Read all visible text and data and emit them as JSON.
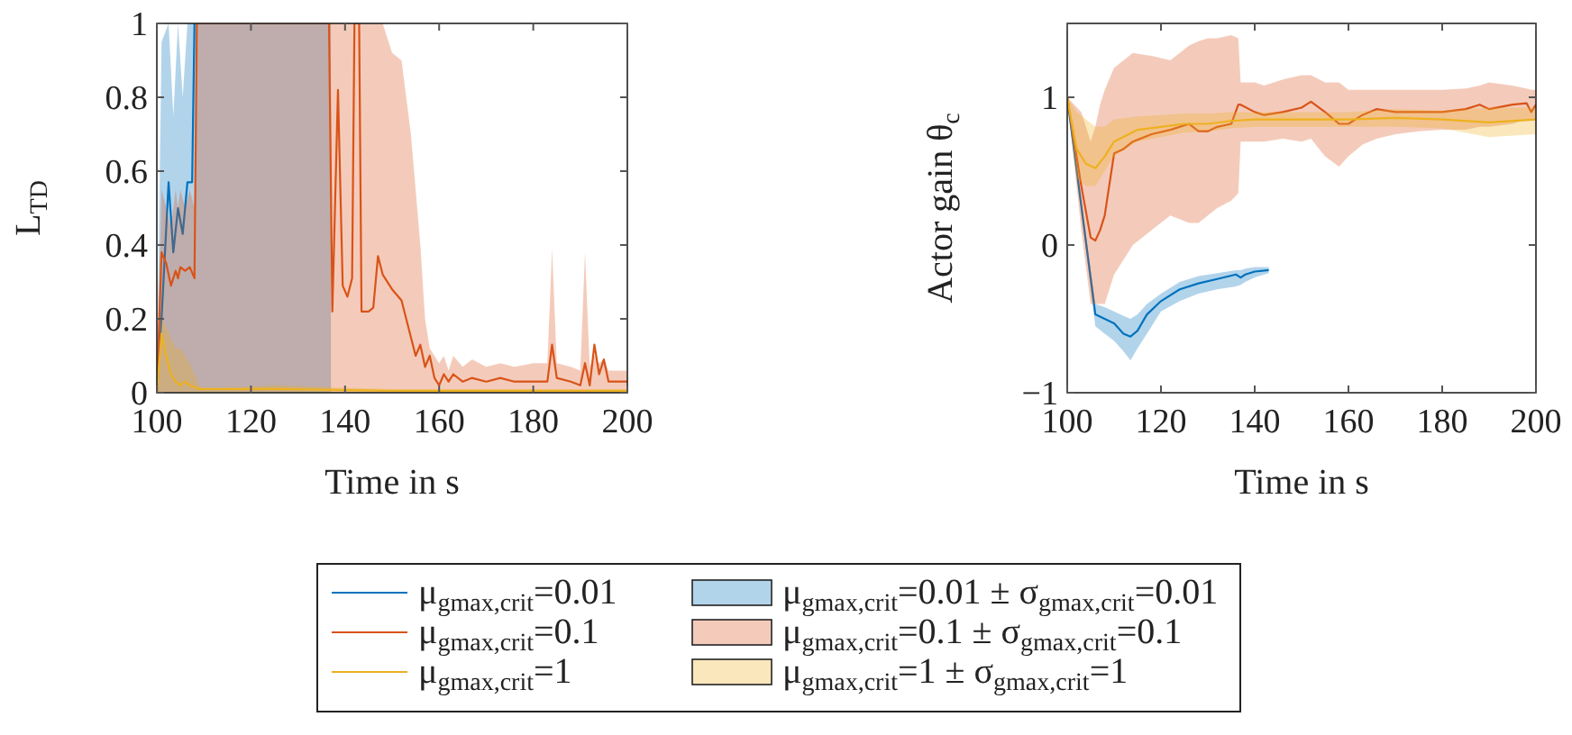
{
  "chart_data": [
    {
      "type": "line",
      "ylabel": "L$_{TD}$",
      "xlabel": "Time in s",
      "xlim": [
        100,
        200
      ],
      "ylim": [
        0,
        1
      ],
      "xticks": [
        100,
        120,
        140,
        160,
        180,
        200
      ],
      "yticks": [
        0,
        0.2,
        0.4,
        0.6,
        0.8,
        1
      ],
      "grid": false,
      "legend": "bottom",
      "annotations": [
        "μ$_{g}$$_{max,crit}$=0.01 ± σ$_{g}$$_{max,crit}$=0.01",
        "μ$_{g}$$_{max,crit}$=0.1 ± σ$_{g}$$_{max,crit}$=0.1",
        "μ$_{g}$$_{max,crit}$=1 ± σ$_{g}$$_{max,crit}$=1"
      ],
      "series": [
        {
          "name": "μ$_{g}$$_{max,crit}$=0.01",
          "color": "#0072bd",
          "x": [
            100,
            101,
            102.5,
            103.5,
            104.5,
            105.5,
            106.5,
            107.5,
            108,
            109,
            110,
            120,
            130,
            137
          ],
          "values": [
            0,
            0.2,
            0.57,
            0.38,
            0.5,
            0.43,
            0.57,
            0.57,
            1,
            null,
            null,
            null,
            null,
            null
          ],
          "lower": [
            0,
            0,
            0,
            0,
            0,
            0,
            0,
            0,
            0,
            0,
            0,
            0,
            0,
            0
          ],
          "upper": [
            0,
            0.95,
            1,
            0.75,
            1,
            0.8,
            1,
            1,
            1,
            1,
            1,
            1,
            1,
            1
          ]
        },
        {
          "name": "μ$_{g}$$_{max,crit}$=0.1",
          "color": "#d95319",
          "x": [
            100,
            101,
            102,
            103,
            104,
            104.5,
            105,
            106,
            107,
            108,
            108.5,
            136.6,
            137.3,
            138.5,
            139.5,
            140.5,
            141.5,
            142,
            143,
            143.5,
            145,
            146,
            147,
            148,
            150,
            152,
            153,
            154,
            155,
            156,
            157,
            158,
            159,
            160,
            161,
            162,
            163,
            165,
            167,
            170,
            173,
            176,
            180,
            183,
            184,
            185,
            188,
            190,
            191,
            192,
            193,
            194,
            195,
            196,
            198,
            200
          ],
          "values": [
            0,
            0.38,
            0.35,
            0.29,
            0.33,
            0.31,
            0.34,
            0.33,
            0.34,
            0.31,
            1,
            1,
            0.22,
            0.82,
            0.29,
            0.26,
            0.31,
            1,
            1,
            0.22,
            0.22,
            0.23,
            0.37,
            0.32,
            0.28,
            0.25,
            0.2,
            0.15,
            0.1,
            0.13,
            0.07,
            0.1,
            0.04,
            0.02,
            0.05,
            0.03,
            0.05,
            0.03,
            0.04,
            0.03,
            0.04,
            0.03,
            0.03,
            0.03,
            0.13,
            0.04,
            0.03,
            0.02,
            0.08,
            0.02,
            0.13,
            0.05,
            0.09,
            0.03,
            0.03,
            0.03
          ],
          "lower": [
            0,
            0,
            0,
            0,
            0,
            0,
            0,
            0,
            0,
            0,
            0,
            0,
            0,
            0,
            0,
            0,
            0,
            0,
            0,
            0,
            0,
            0,
            0,
            0,
            0,
            0,
            0,
            0,
            0,
            0,
            0,
            0,
            0,
            0,
            0,
            0,
            0,
            0,
            0,
            0,
            0,
            0,
            0,
            0,
            0,
            0,
            0,
            0,
            0,
            0,
            0,
            0,
            0,
            0,
            0,
            0
          ],
          "upper": [
            0,
            0.55,
            0.5,
            0.45,
            0.55,
            0.5,
            0.55,
            0.5,
            0.55,
            0.5,
            1,
            1,
            1,
            1,
            1,
            1,
            1,
            1,
            1,
            1,
            1,
            1,
            1,
            1,
            0.92,
            0.9,
            0.8,
            0.7,
            0.55,
            0.4,
            0.2,
            0.12,
            0.1,
            0.08,
            0.1,
            0.06,
            0.1,
            0.07,
            0.09,
            0.07,
            0.08,
            0.07,
            0.08,
            0.08,
            0.39,
            0.08,
            0.07,
            0.06,
            0.38,
            0.07,
            0.1,
            0.08,
            0.09,
            0.06,
            0.06,
            0.06
          ]
        },
        {
          "name": "μ$_{g}$$_{max,crit}$=1",
          "color": "#edb120",
          "x": [
            100,
            101,
            102,
            103,
            104,
            105,
            106,
            107,
            109,
            110,
            125,
            150,
            175,
            200
          ],
          "values": [
            0,
            0.16,
            0.1,
            0.05,
            0.03,
            0.02,
            0.03,
            0.02,
            0.01,
            0.01,
            0.01,
            0.005,
            0.005,
            0.005
          ],
          "lower": [
            0,
            0,
            0,
            0,
            0,
            0,
            0,
            0,
            0,
            0,
            0,
            0,
            0,
            0
          ],
          "upper": [
            0,
            0.2,
            0.18,
            0.15,
            0.12,
            0.12,
            0.1,
            0.08,
            0.02,
            0.01,
            0.02,
            0.01,
            0.01,
            0.01
          ]
        }
      ]
    },
    {
      "type": "line",
      "ylabel": "Actor gain θ$_{c}$",
      "xlabel": "Time in s",
      "xlim": [
        100,
        200
      ],
      "ylim": [
        -1,
        1.5
      ],
      "xticks": [
        100,
        120,
        140,
        160,
        180,
        200
      ],
      "yticks": [
        -1,
        0,
        1
      ],
      "grid": false,
      "series": [
        {
          "color": "#0072bd",
          "x": [
            100,
            106,
            108,
            110,
            112,
            113.5,
            115,
            117,
            120,
            124,
            128,
            132,
            136,
            137,
            138,
            140,
            143
          ],
          "values": [
            1,
            -0.47,
            -0.5,
            -0.53,
            -0.6,
            -0.62,
            -0.58,
            -0.47,
            -0.38,
            -0.3,
            -0.26,
            -0.23,
            -0.2,
            -0.22,
            -0.2,
            -0.18,
            -0.17
          ],
          "lower": [
            1,
            -0.55,
            -0.6,
            -0.65,
            -0.72,
            -0.78,
            -0.7,
            -0.6,
            -0.45,
            -0.38,
            -0.33,
            -0.3,
            -0.28,
            -0.27,
            -0.25,
            -0.22,
            -0.19
          ],
          "upper": [
            1,
            -0.4,
            -0.42,
            -0.45,
            -0.48,
            -0.5,
            -0.47,
            -0.4,
            -0.33,
            -0.25,
            -0.21,
            -0.19,
            -0.17,
            -0.17,
            -0.16,
            -0.15,
            -0.15
          ]
        },
        {
          "color": "#d95319",
          "x": [
            100,
            103,
            105,
            106,
            107,
            108,
            110,
            112,
            114,
            118,
            122,
            126,
            128,
            130,
            132,
            135,
            136.5,
            137,
            140,
            142,
            146,
            150,
            152,
            155,
            158,
            160,
            163,
            166,
            170,
            175,
            180,
            185,
            188,
            190,
            195,
            198,
            199,
            200
          ],
          "values": [
            1,
            0.4,
            0.05,
            0.03,
            0.1,
            0.2,
            0.62,
            0.65,
            0.7,
            0.75,
            0.78,
            0.82,
            0.77,
            0.77,
            0.8,
            0.82,
            0.95,
            0.95,
            0.9,
            0.88,
            0.9,
            0.93,
            0.97,
            0.9,
            0.82,
            0.82,
            0.88,
            0.92,
            0.9,
            0.9,
            0.9,
            0.92,
            0.95,
            0.92,
            0.95,
            0.96,
            0.9,
            0.95
          ],
          "lower": [
            1,
            0.1,
            -0.4,
            -0.4,
            -0.4,
            -0.4,
            -0.2,
            -0.1,
            0,
            0.1,
            0.2,
            0.15,
            0.15,
            0.2,
            0.25,
            0.3,
            0.35,
            0.7,
            0.7,
            0.7,
            0.72,
            0.7,
            0.72,
            0.6,
            0.53,
            0.6,
            0.68,
            0.72,
            0.75,
            0.77,
            0.78,
            0.78,
            0.8,
            0.8,
            0.82,
            0.85,
            0.85,
            0.85
          ],
          "upper": [
            1,
            0.9,
            0.7,
            0.8,
            0.95,
            1.05,
            1.2,
            1.25,
            1.3,
            1.28,
            1.25,
            1.35,
            1.38,
            1.4,
            1.4,
            1.42,
            1.4,
            1.1,
            1.1,
            1.08,
            1.12,
            1.15,
            1.15,
            1.1,
            1.1,
            1.05,
            1.05,
            1.05,
            1.05,
            1.05,
            1.05,
            1.06,
            1.08,
            1.1,
            1.08,
            1.06,
            1.05,
            1.05
          ]
        },
        {
          "color": "#edb120",
          "x": [
            100,
            102,
            104,
            106,
            108,
            110,
            115,
            120,
            125,
            130,
            135,
            140,
            150,
            160,
            170,
            180,
            190,
            200
          ],
          "values": [
            1,
            0.65,
            0.55,
            0.52,
            0.6,
            0.7,
            0.78,
            0.8,
            0.82,
            0.82,
            0.84,
            0.85,
            0.85,
            0.85,
            0.86,
            0.85,
            0.83,
            0.85
          ],
          "lower": [
            1,
            0.45,
            0.4,
            0.4,
            0.5,
            0.6,
            0.7,
            0.73,
            0.76,
            0.77,
            0.79,
            0.8,
            0.8,
            0.8,
            0.8,
            0.79,
            0.73,
            0.75
          ],
          "upper": [
            1,
            0.9,
            0.85,
            0.8,
            0.8,
            0.85,
            0.87,
            0.88,
            0.89,
            0.89,
            0.9,
            0.9,
            0.9,
            0.9,
            0.92,
            0.91,
            0.93,
            0.93
          ]
        }
      ]
    }
  ]
}
